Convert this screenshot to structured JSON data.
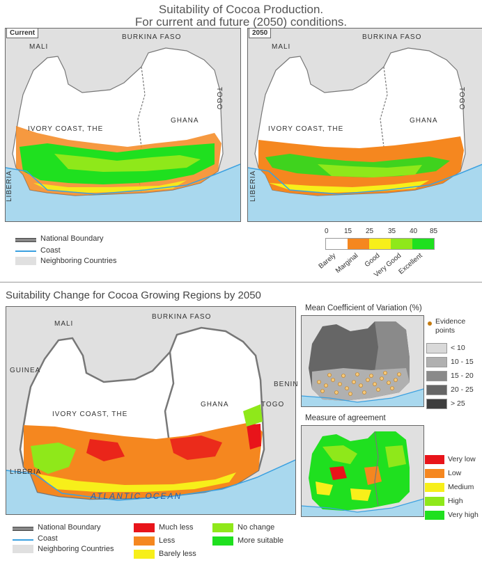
{
  "top": {
    "title_line1": "Suitability of Cocoa Production.",
    "title_line2": "For current and future (2050) conditions.",
    "panel_current_tag": "Current",
    "panel_future_tag": "2050",
    "countries": {
      "mali": "MALI",
      "burkina": "BURKINA FASO",
      "togo": "TOGO",
      "ivory": "IVORY COAST, THE",
      "ghana": "GHANA",
      "liberia": "LIBERIA"
    },
    "legend": {
      "national_boundary": "National Boundary",
      "coast": "Coast",
      "neighboring": "Neighboring Countries"
    },
    "scale": {
      "ticks": [
        "0",
        "15",
        "25",
        "35",
        "40",
        "85"
      ],
      "classes": [
        {
          "label": "Barely",
          "color": "#ffffff"
        },
        {
          "label": "Marginal",
          "color": "#f5871f"
        },
        {
          "label": "Good",
          "color": "#f7ef1a"
        },
        {
          "label": "Very Good",
          "color": "#8fe81a"
        },
        {
          "label": "Excellent",
          "color": "#1fe01f"
        }
      ]
    }
  },
  "bottom": {
    "title": "Suitability Change for Cocoa Growing Regions by 2050",
    "countries": {
      "mali": "MALI",
      "burkina": "BURKINA FASO",
      "benin": "BENIN",
      "guinea": "GUINEA",
      "togo": "TOGO",
      "ivory": "IVORY COAST, THE",
      "ghana": "GHANA",
      "liberia": "LIBERIA",
      "ocean": "ATLANTIC OCEAN"
    },
    "cv": {
      "title": "Mean Coefficient of Variation (%)",
      "evidence": "Evidence points",
      "classes": [
        {
          "label": "< 10",
          "color": "#d9d9d9"
        },
        {
          "label": "10 - 15",
          "color": "#b0b0b0"
        },
        {
          "label": "15 - 20",
          "color": "#8a8a8a"
        },
        {
          "label": "20 - 25",
          "color": "#666666"
        },
        {
          "label": "> 25",
          "color": "#3d3d3d"
        }
      ]
    },
    "agreement": {
      "title": "Measure of agreement",
      "classes": [
        {
          "label": "Very low",
          "color": "#e8141a"
        },
        {
          "label": "Low",
          "color": "#f5871f"
        },
        {
          "label": "Medium",
          "color": "#f7ef1a"
        },
        {
          "label": "High",
          "color": "#8fe81a"
        },
        {
          "label": "Very high",
          "color": "#1fe01f"
        }
      ]
    },
    "legend": {
      "national_boundary": "National Boundary",
      "coast": "Coast",
      "neighboring": "Neighboring Countries",
      "change": [
        {
          "label": "Much less",
          "color": "#e8141a"
        },
        {
          "label": "Less",
          "color": "#f5871f"
        },
        {
          "label": "Barely less",
          "color": "#f7ef1a"
        },
        {
          "label": "No change",
          "color": "#8fe81a"
        },
        {
          "label": "More suitable",
          "color": "#1fe01f"
        }
      ]
    }
  },
  "colors": {
    "ocean": "#a9d8ee",
    "neighbor": "#e0e0e0",
    "land": "#ffffff",
    "coast": "#3aa0e0"
  }
}
